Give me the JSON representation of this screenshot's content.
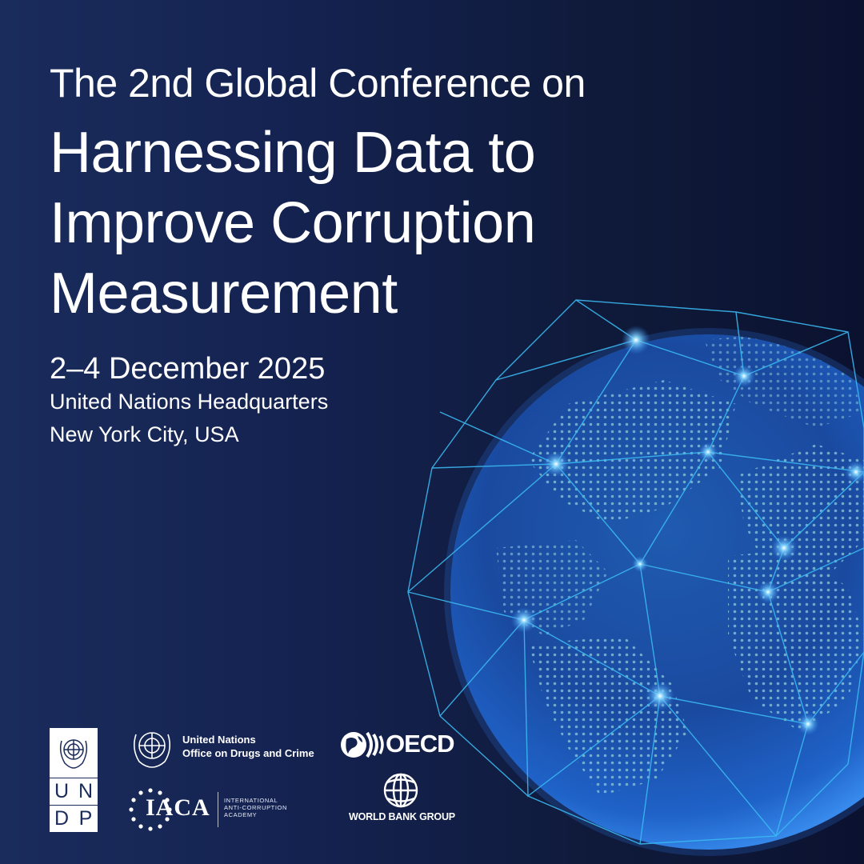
{
  "header": {
    "intro": "The 2nd Global Conference on",
    "title_lines": [
      "Harnessing Data to",
      "Improve Corruption",
      "Measurement"
    ]
  },
  "event": {
    "date": "2–4 December 2025",
    "venue": "United Nations Headquarters",
    "city": "New York City, USA"
  },
  "logos": {
    "undp_letters": [
      "U",
      "N",
      "D",
      "P"
    ],
    "unodc_line1": "United Nations",
    "unodc_line2": "Office on Drugs and Crime",
    "iaca_name": "IACA",
    "iaca_sub": [
      "INTERNATIONAL",
      "ANTI-CORRUPTION",
      "ACADEMY"
    ],
    "oecd": "OECD",
    "world_bank": "WORLD BANK GROUP"
  },
  "colors": {
    "background": "#142250",
    "globe_glow": "#2f7fe0",
    "wireframe": "#3ab8f0",
    "continents": "#8ec9d8"
  },
  "icons": [
    "un-emblem-icon",
    "globe-wireframe-illustration",
    "oecd-globe-icon",
    "world-bank-globe-icon"
  ]
}
